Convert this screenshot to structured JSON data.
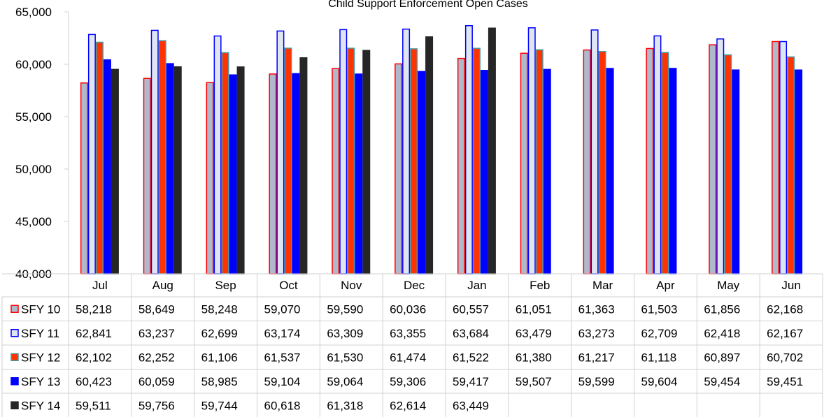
{
  "chart_data": {
    "type": "bar",
    "title": "Child Support Enforcement Open Cases",
    "xlabel": "",
    "ylabel": "",
    "ylim": [
      40000,
      65000
    ],
    "yticks": [
      "40,000",
      "45,000",
      "50,000",
      "55,000",
      "60,000",
      "65,000"
    ],
    "ytick_values": [
      40000,
      45000,
      50000,
      55000,
      60000,
      65000
    ],
    "categories": [
      "Jul",
      "Aug",
      "Sep",
      "Oct",
      "Nov",
      "Dec",
      "Jan",
      "Feb",
      "Mar",
      "Apr",
      "May",
      "Jun"
    ],
    "grid": false,
    "legend": "data-table",
    "series": [
      {
        "name": "SFY 10",
        "fill": "#b0b8cc",
        "stroke": "#ff0000",
        "values": [
          58218,
          58649,
          58248,
          59070,
          59590,
          60036,
          60557,
          61051,
          61363,
          61503,
          61856,
          62168
        ],
        "labels": [
          "58,218",
          "58,649",
          "58,248",
          "59,070",
          "59,590",
          "60,036",
          "60,557",
          "61,051",
          "61,363",
          "61,503",
          "61,856",
          "62,168"
        ]
      },
      {
        "name": "SFY 11",
        "fill": "#dfe6f0",
        "stroke": "#0000ff",
        "values": [
          62841,
          63237,
          62699,
          63174,
          63309,
          63355,
          63684,
          63479,
          63273,
          62709,
          62418,
          62167
        ],
        "labels": [
          "62,841",
          "63,237",
          "62,699",
          "63,174",
          "63,309",
          "63,355",
          "63,684",
          "63,479",
          "63,273",
          "62,709",
          "62,418",
          "62,167"
        ]
      },
      {
        "name": "SFY 12",
        "fill": "#ff3300",
        "stroke": "#4a9aa8",
        "values": [
          62102,
          62252,
          61106,
          61537,
          61530,
          61474,
          61522,
          61380,
          61217,
          61118,
          60897,
          60702
        ],
        "labels": [
          "62,102",
          "62,252",
          "61,106",
          "61,537",
          "61,530",
          "61,474",
          "61,522",
          "61,380",
          "61,217",
          "61,118",
          "60,897",
          "60,702"
        ]
      },
      {
        "name": "SFY 13",
        "fill": "#0000ff",
        "stroke": "#0000ff",
        "values": [
          60423,
          60059,
          58985,
          59104,
          59064,
          59306,
          59417,
          59507,
          59599,
          59604,
          59454,
          59451
        ],
        "labels": [
          "60,423",
          "60,059",
          "58,985",
          "59,104",
          "59,064",
          "59,306",
          "59,417",
          "59,507",
          "59,599",
          "59,604",
          "59,454",
          "59,451"
        ]
      },
      {
        "name": "SFY 14",
        "fill": "#262626",
        "stroke": "#262626",
        "values": [
          59511,
          59756,
          59744,
          60618,
          61318,
          62614,
          63449,
          null,
          null,
          null,
          null,
          null
        ],
        "labels": [
          "59,511",
          "59,756",
          "59,744",
          "60,618",
          "61,318",
          "62,614",
          "63,449",
          "",
          "",
          "",
          "",
          ""
        ]
      }
    ]
  }
}
